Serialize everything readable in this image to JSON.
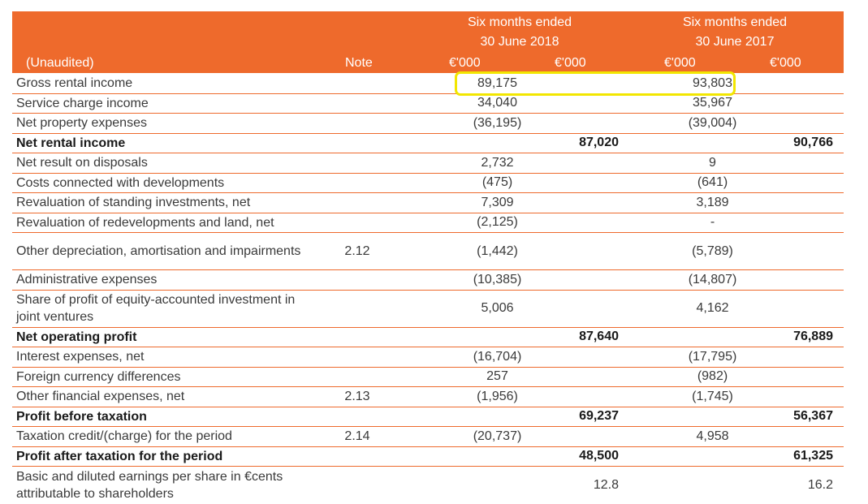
{
  "header": {
    "period_2018": [
      "Six months ended",
      "30 June 2018"
    ],
    "period_2017": [
      "Six months ended",
      "30 June 2017"
    ],
    "unaudited_label": "(Unaudited)",
    "note_label": "Note",
    "currency_label": "€'000"
  },
  "rows": [
    {
      "label": "Gross rental income",
      "note": "",
      "c1": "89,175",
      "c2": "",
      "c3": "93,803",
      "c4": "",
      "bold": false
    },
    {
      "label": "Service charge income",
      "note": "",
      "c1": "34,040",
      "c2": "",
      "c3": "35,967",
      "c4": "",
      "bold": false
    },
    {
      "label": "Net property expenses",
      "note": "",
      "c1": "(36,195)",
      "c2": "",
      "c3": "(39,004)",
      "c4": "",
      "bold": false
    },
    {
      "label": "Net rental income",
      "note": "",
      "c1": "",
      "c2": "87,020",
      "c3": "",
      "c4": "90,766",
      "bold": true
    },
    {
      "label": "Net result on disposals",
      "note": "",
      "c1": "2,732",
      "c2": "",
      "c3": "9",
      "c4": "",
      "bold": false
    },
    {
      "label": "Costs connected with developments",
      "note": "",
      "c1": "(475)",
      "c2": "",
      "c3": "(641)",
      "c4": "",
      "bold": false
    },
    {
      "label": "Revaluation of standing investments, net",
      "note": "",
      "c1": "7,309",
      "c2": "",
      "c3": "3,189",
      "c4": "",
      "bold": false
    },
    {
      "label": "Revaluation of redevelopments and land, net",
      "note": "",
      "c1": "(2,125)",
      "c2": "",
      "c3": "-",
      "c4": "",
      "bold": false
    },
    {
      "label": "Other depreciation, amortisation and impairments",
      "note": "2.12",
      "c1": "(1,442)",
      "c2": "",
      "c3": "(5,789)",
      "c4": "",
      "bold": false,
      "tall": true
    },
    {
      "label": "Administrative expenses",
      "note": "",
      "c1": "(10,385)",
      "c2": "",
      "c3": "(14,807)",
      "c4": "",
      "bold": false
    },
    {
      "label": "Share of profit of equity-accounted investment in joint ventures",
      "note": "",
      "c1": "5,006",
      "c2": "",
      "c3": "4,162",
      "c4": "",
      "bold": false,
      "tall": true
    },
    {
      "label": "Net operating profit",
      "note": "",
      "c1": "",
      "c2": "87,640",
      "c3": "",
      "c4": "76,889",
      "bold": true
    },
    {
      "label": "Interest expenses, net",
      "note": "",
      "c1": "(16,704)",
      "c2": "",
      "c3": "(17,795)",
      "c4": "",
      "bold": false
    },
    {
      "label": "Foreign currency differences",
      "note": "",
      "c1": "257",
      "c2": "",
      "c3": "(982)",
      "c4": "",
      "bold": false
    },
    {
      "label": "Other financial expenses, net",
      "note": "2.13",
      "c1": "(1,956)",
      "c2": "",
      "c3": "(1,745)",
      "c4": "",
      "bold": false
    },
    {
      "label": "Profit before taxation",
      "note": "",
      "c1": "",
      "c2": "69,237",
      "c3": "",
      "c4": "56,367",
      "bold": true
    },
    {
      "label": "Taxation credit/(charge) for the period",
      "note": "2.14",
      "c1": "(20,737)",
      "c2": "",
      "c3": "4,958",
      "c4": "",
      "bold": false
    },
    {
      "label": "Profit after taxation for the period",
      "note": "",
      "c1": "",
      "c2": "48,500",
      "c3": "",
      "c4": "61,325",
      "bold": true
    },
    {
      "label": "Basic and diluted earnings per share in €cents attributable to shareholders",
      "note": "",
      "c1": "",
      "c2": "12.8",
      "c3": "",
      "c4": "16.2",
      "bold": false,
      "tall": true,
      "last": true
    }
  ],
  "highlight_color": "#f2e600",
  "accent_color": "#ee6a2c"
}
